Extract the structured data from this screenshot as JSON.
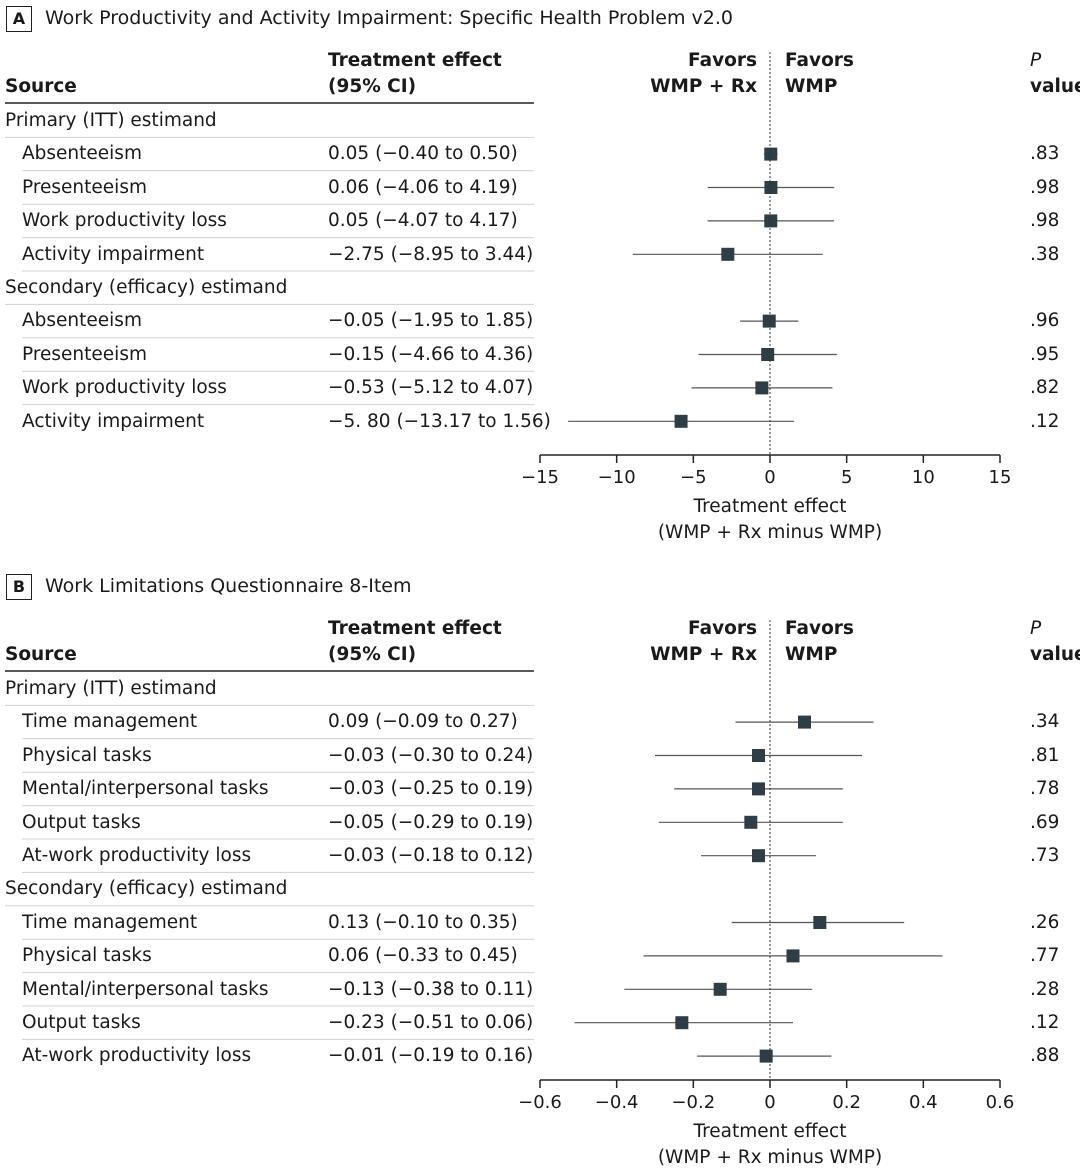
{
  "header": {
    "source": "Source",
    "effect_line1": "Treatment effect",
    "effect_line2": "(95% CI)",
    "favors_left_line1": "Favors",
    "favors_left_line2": "WMP + Rx",
    "favors_right_line1": "Favors",
    "favors_right_line2": "WMP",
    "p_line1": "P",
    "p_line2": "value"
  },
  "chart_data": [
    {
      "type": "forest",
      "panel": "A",
      "title": "Work Productivity and Activity Impairment: Specific Health Problem v2.0",
      "xlabel": "Treatment effect",
      "xlabel2": "(WMP + Rx minus WMP)",
      "xlim": [
        -15,
        15
      ],
      "ticks": [
        -15,
        -10,
        -5,
        0,
        5,
        10,
        15
      ],
      "tick_labels": [
        "−15",
        "−10",
        "−5",
        "0",
        "5",
        "10",
        "15"
      ],
      "reference": 0,
      "groups": [
        {
          "name": "Primary (ITT) estimand",
          "rows": [
            {
              "label": "Absenteeism",
              "ci_text": "0.05 (−0.40 to 0.50)",
              "est": 0.05,
              "lo": -0.4,
              "hi": 0.5,
              "p": ".83"
            },
            {
              "label": "Presenteeism",
              "ci_text": "0.06 (−4.06 to 4.19)",
              "est": 0.06,
              "lo": -4.06,
              "hi": 4.19,
              "p": ".98"
            },
            {
              "label": "Work productivity loss",
              "ci_text": "0.05 (−4.07 to 4.17)",
              "est": 0.05,
              "lo": -4.07,
              "hi": 4.17,
              "p": ".98"
            },
            {
              "label": "Activity impairment",
              "ci_text": "−2.75 (−8.95 to 3.44)",
              "est": -2.75,
              "lo": -8.95,
              "hi": 3.44,
              "p": ".38"
            }
          ]
        },
        {
          "name": "Secondary (efficacy) estimand",
          "rows": [
            {
              "label": "Absenteeism",
              "ci_text": "−0.05 (−1.95 to 1.85)",
              "est": -0.05,
              "lo": -1.95,
              "hi": 1.85,
              "p": ".96"
            },
            {
              "label": "Presenteeism",
              "ci_text": "−0.15 (−4.66 to 4.36)",
              "est": -0.15,
              "lo": -4.66,
              "hi": 4.36,
              "p": ".95"
            },
            {
              "label": "Work productivity loss",
              "ci_text": "−0.53 (−5.12 to 4.07)",
              "est": -0.53,
              "lo": -5.12,
              "hi": 4.07,
              "p": ".82"
            },
            {
              "label": "Activity impairment",
              "ci_text": "−5. 80 (−13.17 to 1.56)",
              "est": -5.8,
              "lo": -13.17,
              "hi": 1.56,
              "p": ".12"
            }
          ]
        }
      ]
    },
    {
      "type": "forest",
      "panel": "B",
      "title": "Work Limitations Questionnaire 8-Item",
      "xlabel": "Treatment effect",
      "xlabel2": "(WMP + Rx minus WMP)",
      "xlim": [
        -0.6,
        0.6
      ],
      "ticks": [
        -0.6,
        -0.4,
        -0.2,
        0,
        0.2,
        0.4,
        0.6
      ],
      "tick_labels": [
        "−0.6",
        "−0.4",
        "−0.2",
        "0",
        "0.2",
        "0.4",
        "0.6"
      ],
      "reference": 0,
      "groups": [
        {
          "name": "Primary (ITT) estimand",
          "rows": [
            {
              "label": "Time management",
              "ci_text": "0.09 (−0.09 to 0.27)",
              "est": 0.09,
              "lo": -0.09,
              "hi": 0.27,
              "p": ".34"
            },
            {
              "label": "Physical tasks",
              "ci_text": "−0.03 (−0.30 to 0.24)",
              "est": -0.03,
              "lo": -0.3,
              "hi": 0.24,
              "p": ".81"
            },
            {
              "label": "Mental/interpersonal tasks",
              "ci_text": "−0.03 (−0.25 to 0.19)",
              "est": -0.03,
              "lo": -0.25,
              "hi": 0.19,
              "p": ".78"
            },
            {
              "label": "Output tasks",
              "ci_text": "−0.05 (−0.29 to 0.19)",
              "est": -0.05,
              "lo": -0.29,
              "hi": 0.19,
              "p": ".69"
            },
            {
              "label": "At-work productivity loss",
              "ci_text": "−0.03 (−0.18 to 0.12)",
              "est": -0.03,
              "lo": -0.18,
              "hi": 0.12,
              "p": ".73"
            }
          ]
        },
        {
          "name": "Secondary (efficacy) estimand",
          "rows": [
            {
              "label": "Time management",
              "ci_text": "0.13 (−0.10 to 0.35)",
              "est": 0.13,
              "lo": -0.1,
              "hi": 0.35,
              "p": ".26"
            },
            {
              "label": "Physical tasks",
              "ci_text": "0.06 (−0.33 to 0.45)",
              "est": 0.06,
              "lo": -0.33,
              "hi": 0.45,
              "p": ".77"
            },
            {
              "label": "Mental/interpersonal tasks",
              "ci_text": "−0.13 (−0.38 to 0.11)",
              "est": -0.13,
              "lo": -0.38,
              "hi": 0.11,
              "p": ".28"
            },
            {
              "label": "Output tasks",
              "ci_text": "−0.23 (−0.51 to 0.06)",
              "est": -0.23,
              "lo": -0.51,
              "hi": 0.06,
              "p": ".12"
            },
            {
              "label": "At-work productivity loss",
              "ci_text": "−0.01 (−0.19 to 0.16)",
              "est": -0.01,
              "lo": -0.19,
              "hi": 0.16,
              "p": ".88"
            }
          ]
        }
      ]
    }
  ],
  "colors": {
    "marker": "#2f3e46",
    "line": "#555555",
    "divider": "#cfcfcf",
    "text": "#1a1a1a"
  }
}
